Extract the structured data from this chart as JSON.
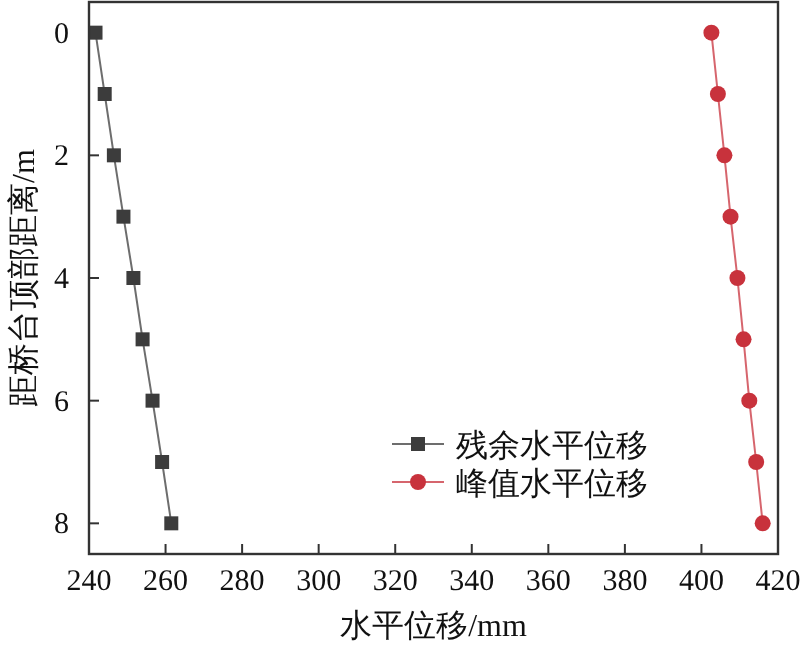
{
  "chart_data": {
    "type": "line",
    "xlabel": "水平位移/mm",
    "ylabel": "距桥台顶部距离/m",
    "xlim": [
      240,
      420
    ],
    "xticks": [
      240,
      260,
      280,
      300,
      320,
      340,
      360,
      380,
      400,
      420
    ],
    "ylim": [
      8.5,
      -0.5
    ],
    "yticks": [
      0,
      2,
      4,
      6,
      8
    ],
    "series": [
      {
        "name": "残余水平位移",
        "color": "#3c3c3c",
        "marker": "square",
        "x": [
          241.7,
          244.1,
          246.5,
          249.0,
          251.6,
          254.0,
          256.6,
          259.1,
          261.5
        ],
        "values": [
          0,
          1,
          2,
          3,
          4,
          5,
          6,
          7,
          8
        ]
      },
      {
        "name": "峰值水平位移",
        "color": "#c8323c",
        "marker": "circle",
        "x": [
          402.6,
          404.3,
          406.0,
          407.6,
          409.4,
          411.0,
          412.5,
          414.3,
          416.0
        ],
        "values": [
          0,
          1,
          2,
          3,
          4,
          5,
          6,
          7,
          8
        ]
      }
    ],
    "legend": "bottom right",
    "grid": false
  }
}
